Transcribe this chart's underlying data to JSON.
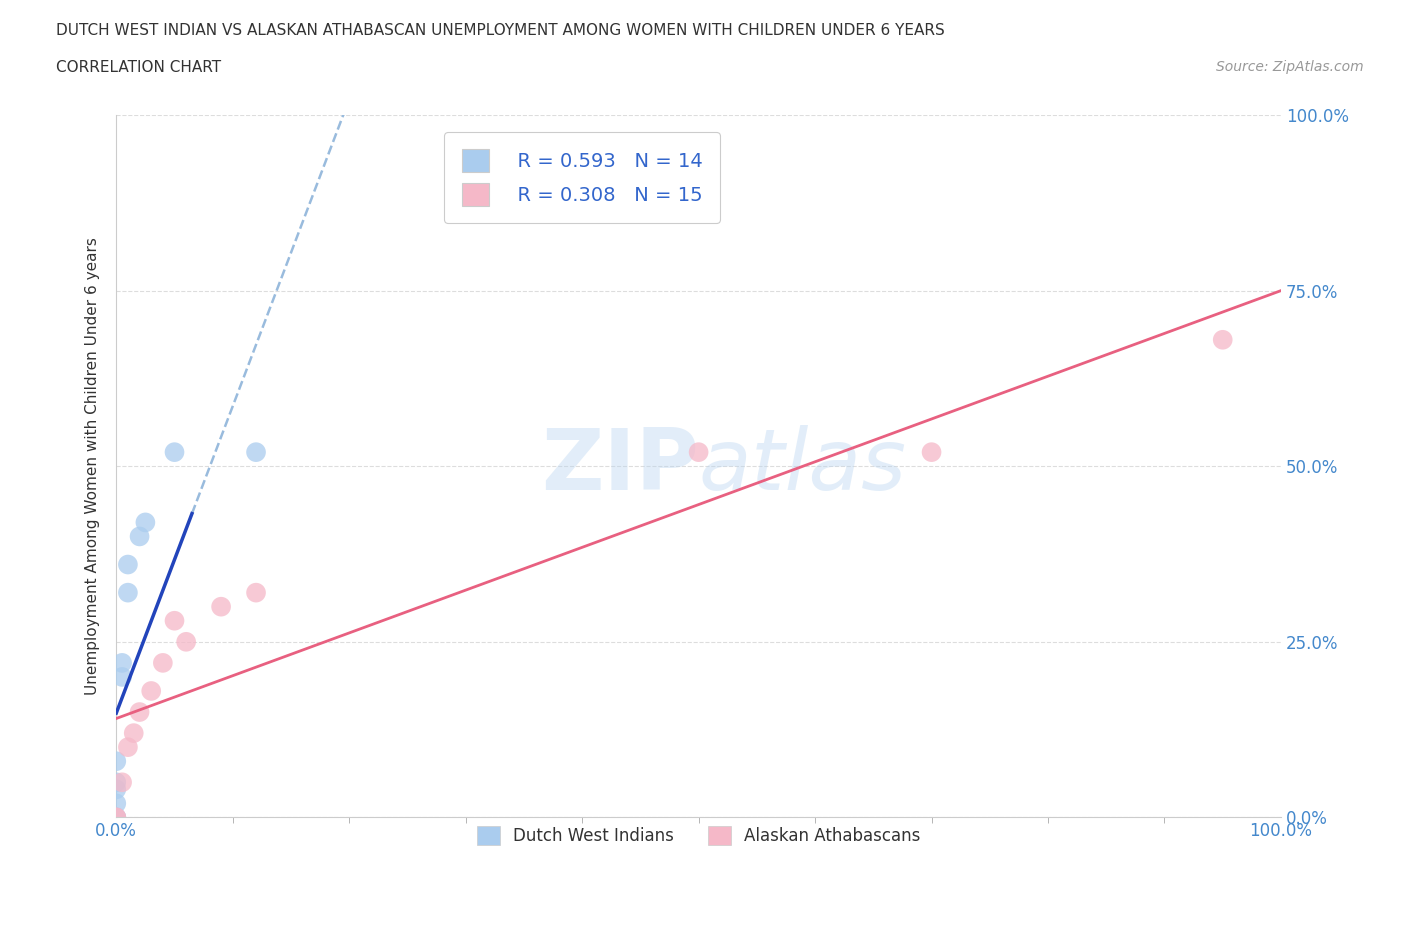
{
  "title": "DUTCH WEST INDIAN VS ALASKAN ATHABASCAN UNEMPLOYMENT AMONG WOMEN WITH CHILDREN UNDER 6 YEARS",
  "subtitle": "CORRELATION CHART",
  "source": "Source: ZipAtlas.com",
  "ylabel": "Unemployment Among Women with Children Under 6 years",
  "watermark": "ZIPatlas",
  "blue_R": 0.593,
  "blue_N": 14,
  "pink_R": 0.308,
  "pink_N": 15,
  "blue_label": "Dutch West Indians",
  "pink_label": "Alaskan Athabascans",
  "title_color": "#333333",
  "source_color": "#999999",
  "legend_R_color": "#3366cc",
  "blue_scatter_color": "#aaccee",
  "pink_scatter_color": "#f5b8c8",
  "blue_trend_color": "#2244bb",
  "pink_trend_color": "#e86080",
  "blue_trend_dashed_color": "#99bbdd",
  "grid_color": "#dddddd",
  "axis_tick_color": "#4488cc",
  "blue_x": [
    0.0,
    0.0,
    0.0,
    0.0,
    0.0,
    0.0,
    0.005,
    0.005,
    0.01,
    0.01,
    0.02,
    0.025,
    0.05,
    0.12
  ],
  "blue_y": [
    0.0,
    0.0,
    0.02,
    0.04,
    0.05,
    0.08,
    0.2,
    0.22,
    0.32,
    0.36,
    0.4,
    0.42,
    0.52,
    0.52
  ],
  "pink_x": [
    0.0,
    0.0,
    0.005,
    0.01,
    0.015,
    0.02,
    0.03,
    0.04,
    0.05,
    0.06,
    0.09,
    0.12,
    0.5,
    0.7,
    0.95
  ],
  "pink_y": [
    0.0,
    0.0,
    0.05,
    0.1,
    0.12,
    0.15,
    0.18,
    0.22,
    0.28,
    0.25,
    0.3,
    0.32,
    0.52,
    0.52,
    0.68
  ],
  "xlim": [
    0.0,
    1.0
  ],
  "ylim": [
    0.0,
    1.0
  ],
  "x_minor_ticks": [
    0.0,
    0.1,
    0.2,
    0.3,
    0.4,
    0.5,
    0.6,
    0.7,
    0.8,
    0.9,
    1.0
  ],
  "yticks": [
    0.0,
    0.25,
    0.5,
    0.75,
    1.0
  ],
  "yticklabels_right": [
    "0.0%",
    "25.0%",
    "50.0%",
    "75.0%",
    "100.0%"
  ],
  "marker_size": 200,
  "background_color": "#ffffff"
}
